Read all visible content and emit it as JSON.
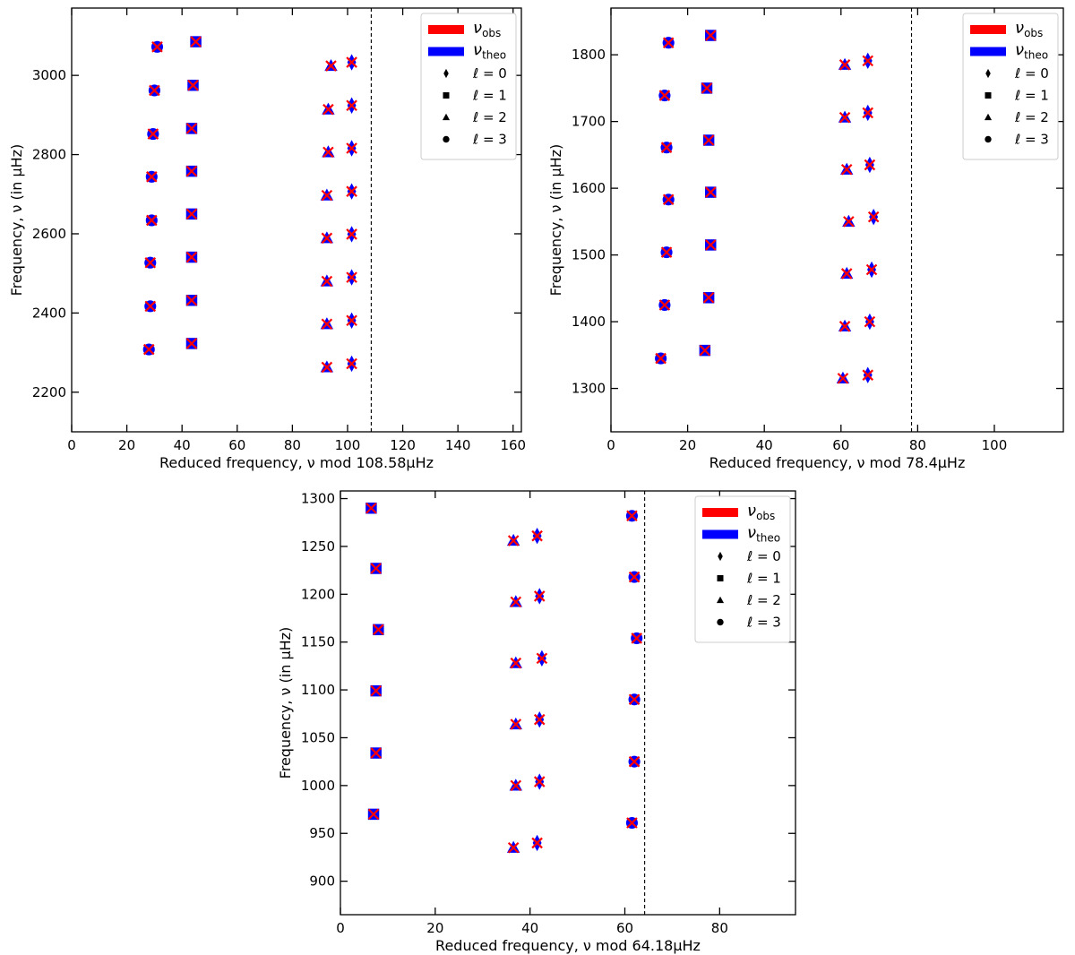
{
  "chart_data": [
    {
      "type": "scatter",
      "name": "echelle-a",
      "xlabel": "Reduced frequency, ν mod 108.58μHz",
      "ylabel": "Frequency, ν (in μHz)",
      "xlim": [
        0,
        163
      ],
      "ylim": [
        2100,
        3170
      ],
      "xticks": [
        0,
        20,
        40,
        60,
        80,
        100,
        120,
        140,
        160
      ],
      "yticks": [
        2200,
        2400,
        2600,
        2800,
        3000
      ],
      "dashed_line_x": 108.58,
      "legend": {
        "placement": "top-right",
        "obs": {
          "sym": "ν",
          "sub": "obs",
          "color": "#ff0000"
        },
        "theo": {
          "sym": "ν",
          "sub": "theo",
          "color": "#0000ff"
        },
        "degrees": [
          {
            "prefix": "ℓ",
            "rest": " = 0",
            "marker": "diamond"
          },
          {
            "prefix": "ℓ",
            "rest": " = 1",
            "marker": "square"
          },
          {
            "prefix": "ℓ",
            "rest": " = 2",
            "marker": "triangle"
          },
          {
            "prefix": "ℓ",
            "rest": " = 3",
            "marker": "circle"
          }
        ]
      },
      "series": [
        {
          "l": 0,
          "marker": "diamond",
          "points": [
            [
              101.5,
              2272
            ],
            [
              101.5,
              2381
            ],
            [
              101.5,
              2490
            ],
            [
              101.5,
              2599
            ],
            [
              101.5,
              2707
            ],
            [
              101.5,
              2816
            ],
            [
              101.5,
              2924
            ],
            [
              101.5,
              3033
            ]
          ]
        },
        {
          "l": 1,
          "marker": "square",
          "points": [
            [
              43.5,
              2323
            ],
            [
              43.5,
              2432
            ],
            [
              43.5,
              2541
            ],
            [
              43.5,
              2650
            ],
            [
              43.5,
              2758
            ],
            [
              43.5,
              2866
            ],
            [
              44,
              2975
            ],
            [
              45,
              3085
            ]
          ]
        },
        {
          "l": 2,
          "marker": "triangle",
          "points": [
            [
              92.5,
              2263
            ],
            [
              92.5,
              2372
            ],
            [
              92.5,
              2480
            ],
            [
              92.5,
              2589
            ],
            [
              92.5,
              2697
            ],
            [
              93,
              2806
            ],
            [
              93,
              2914
            ],
            [
              94,
              3024
            ]
          ]
        },
        {
          "l": 3,
          "marker": "circle",
          "points": [
            [
              28,
              2308
            ],
            [
              28.5,
              2417
            ],
            [
              28.5,
              2527
            ],
            [
              29,
              2634
            ],
            [
              29,
              2744
            ],
            [
              29.5,
              2852
            ],
            [
              30,
              2962
            ],
            [
              31,
              3072
            ]
          ]
        }
      ]
    },
    {
      "type": "scatter",
      "name": "echelle-b",
      "xlabel": "Reduced frequency, ν mod 78.4μHz",
      "ylabel": "Frequency, ν (in μHz)",
      "xlim": [
        0,
        118
      ],
      "ylim": [
        1235,
        1870
      ],
      "xticks": [
        0,
        20,
        40,
        60,
        80,
        100
      ],
      "yticks": [
        1300,
        1400,
        1500,
        1600,
        1700,
        1800
      ],
      "dashed_line_x": 78.4,
      "legend": {
        "placement": "top-right",
        "obs": {
          "sym": "ν",
          "sub": "obs",
          "color": "#ff0000"
        },
        "theo": {
          "sym": "ν",
          "sub": "theo",
          "color": "#0000ff"
        },
        "degrees": [
          {
            "prefix": "ℓ",
            "rest": " = 0",
            "marker": "diamond"
          },
          {
            "prefix": "ℓ",
            "rest": " = 1",
            "marker": "square"
          },
          {
            "prefix": "ℓ",
            "rest": " = 2",
            "marker": "triangle"
          },
          {
            "prefix": "ℓ",
            "rest": " = 3",
            "marker": "circle"
          }
        ]
      },
      "series": [
        {
          "l": 0,
          "marker": "diamond",
          "points": [
            [
              67,
              1320
            ],
            [
              67.5,
              1400
            ],
            [
              68,
              1478
            ],
            [
              68.5,
              1557
            ],
            [
              67.5,
              1635
            ],
            [
              67,
              1713
            ],
            [
              67,
              1791
            ]
          ]
        },
        {
          "l": 1,
          "marker": "square",
          "points": [
            [
              24.5,
              1357
            ],
            [
              25.5,
              1436
            ],
            [
              26,
              1515
            ],
            [
              26,
              1594
            ],
            [
              25.5,
              1672
            ],
            [
              25,
              1750
            ],
            [
              26,
              1829
            ]
          ]
        },
        {
          "l": 2,
          "marker": "triangle",
          "points": [
            [
              60.5,
              1315
            ],
            [
              61,
              1393
            ],
            [
              61.5,
              1472
            ],
            [
              62,
              1550
            ],
            [
              61.5,
              1628
            ],
            [
              61,
              1706
            ],
            [
              61,
              1785
            ]
          ]
        },
        {
          "l": 3,
          "marker": "circle",
          "points": [
            [
              13,
              1345
            ],
            [
              14,
              1425
            ],
            [
              14.5,
              1504
            ],
            [
              15,
              1583
            ],
            [
              14.5,
              1661
            ],
            [
              14,
              1739
            ],
            [
              15,
              1818
            ]
          ]
        }
      ]
    },
    {
      "type": "scatter",
      "name": "echelle-c",
      "xlabel": "Reduced frequency, ν mod 64.18μHz",
      "ylabel": "Frequency, ν (in μHz)",
      "xlim": [
        0,
        96
      ],
      "ylim": [
        865,
        1308
      ],
      "xticks": [
        0,
        20,
        40,
        60,
        80
      ],
      "yticks": [
        900,
        950,
        1000,
        1050,
        1100,
        1150,
        1200,
        1250,
        1300
      ],
      "dashed_line_x": 64.18,
      "legend": {
        "placement": "top-right",
        "obs": {
          "sym": "ν",
          "sub": "obs",
          "color": "#ff0000"
        },
        "theo": {
          "sym": "ν",
          "sub": "theo",
          "color": "#0000ff"
        },
        "degrees": [
          {
            "prefix": "ℓ",
            "rest": " = 0",
            "marker": "diamond"
          },
          {
            "prefix": "ℓ",
            "rest": " = 1",
            "marker": "square"
          },
          {
            "prefix": "ℓ",
            "rest": " = 2",
            "marker": "triangle"
          },
          {
            "prefix": "ℓ",
            "rest": " = 3",
            "marker": "circle"
          }
        ]
      },
      "series": [
        {
          "l": 0,
          "marker": "diamond",
          "points": [
            [
              41.5,
              940
            ],
            [
              42,
              1004
            ],
            [
              42,
              1069
            ],
            [
              42.5,
              1133
            ],
            [
              42,
              1198
            ],
            [
              41.5,
              1261
            ]
          ]
        },
        {
          "l": 1,
          "marker": "square",
          "points": [
            [
              7,
              970
            ],
            [
              7.5,
              1034
            ],
            [
              7.5,
              1099
            ],
            [
              8,
              1163
            ],
            [
              7.5,
              1227
            ],
            [
              6.5,
              1290
            ]
          ]
        },
        {
          "l": 2,
          "marker": "triangle",
          "points": [
            [
              36.5,
              935
            ],
            [
              37,
              1000
            ],
            [
              37,
              1064
            ],
            [
              37,
              1128
            ],
            [
              37,
              1192
            ],
            [
              36.5,
              1256
            ]
          ]
        },
        {
          "l": 3,
          "marker": "circle",
          "points": [
            [
              61.5,
              961
            ],
            [
              62,
              1025
            ],
            [
              62,
              1090
            ],
            [
              62.5,
              1154
            ],
            [
              62,
              1218
            ],
            [
              61.5,
              1282
            ]
          ]
        }
      ]
    }
  ]
}
